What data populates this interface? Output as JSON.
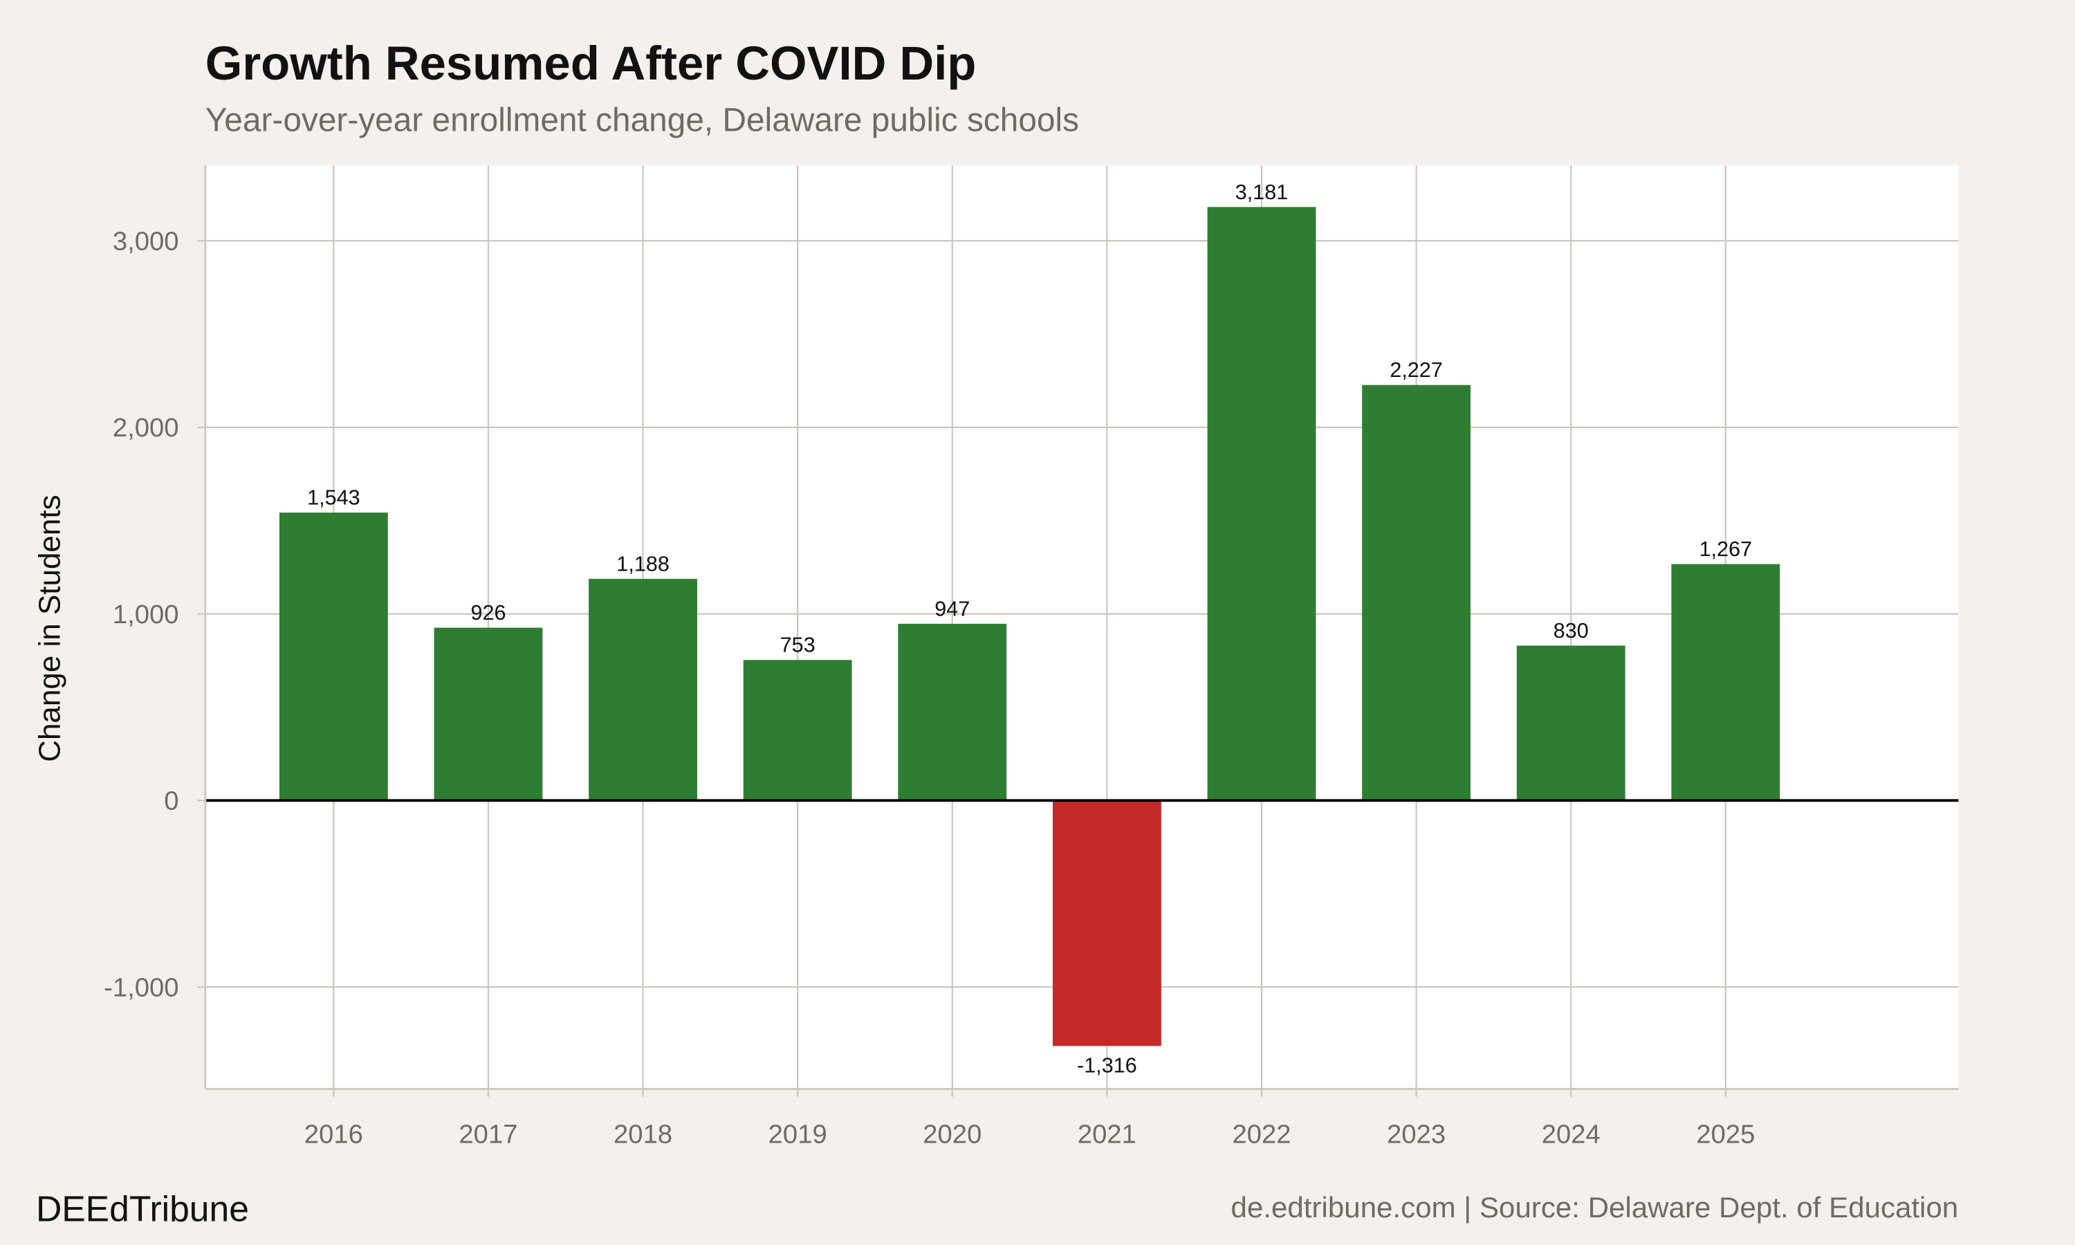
{
  "chart_data": {
    "type": "bar",
    "title": "Growth Resumed After COVID Dip",
    "subtitle": "Year-over-year enrollment change, Delaware public schools",
    "xlabel": "",
    "ylabel": "Change in Students",
    "categories": [
      "2016",
      "2017",
      "2018",
      "2019",
      "2020",
      "2021",
      "2022",
      "2023",
      "2024",
      "2025"
    ],
    "values": [
      1543,
      926,
      1188,
      753,
      947,
      -1316,
      3181,
      2227,
      830,
      1267
    ],
    "data_labels": [
      "1,543",
      "926",
      "1,188",
      "753",
      "947",
      "-1,316",
      "3,181",
      "2,227",
      "830",
      "1,267"
    ],
    "ylim": [
      -1540,
      3400
    ],
    "yticks": [
      -1000,
      0,
      1000,
      2000,
      3000
    ],
    "ytick_labels": [
      "-1,000",
      "0",
      "1,000",
      "2,000",
      "3,000"
    ],
    "grid": true,
    "legend": "none",
    "colors": {
      "positive": "#2e7d32",
      "negative": "#c62828",
      "background": "#f4f1ec",
      "panel": "#ffffff",
      "grid": "#cdc8bf"
    }
  },
  "footer": {
    "brand": "DEEdTribune",
    "source": "de.edtribune.com | Source: Delaware Dept. of Education"
  }
}
